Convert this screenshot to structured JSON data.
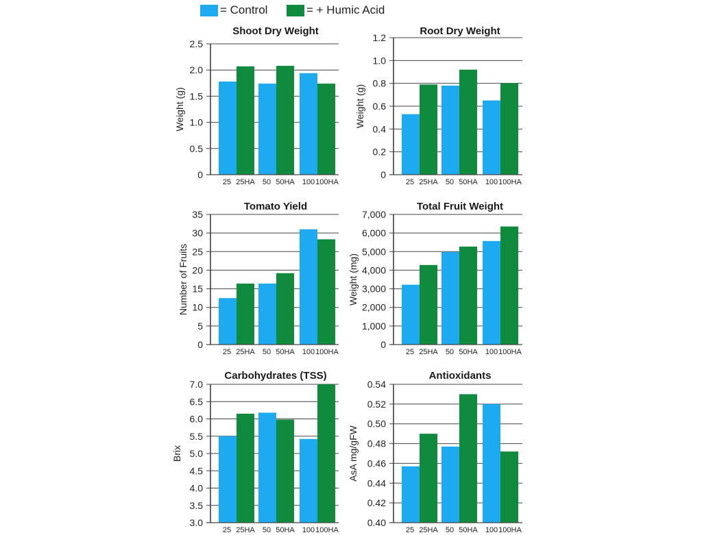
{
  "legend": [
    {
      "label": "= Control",
      "color": "#1eaaf1"
    },
    {
      "label": "= + Humic Acid",
      "color": "#108a3c"
    }
  ],
  "colors": {
    "control": "#1eaaf1",
    "humic": "#108a3c",
    "grid": "#444444"
  },
  "chart_data": [
    {
      "type": "bar",
      "title": "Shoot Dry Weight",
      "ylabel": "Weight (g)",
      "ylim": [
        0,
        2.5
      ],
      "yticks": [
        "0",
        "0.5",
        "1.0",
        "1.5",
        "2.0",
        "2.5"
      ],
      "categories": [
        "25",
        "25HA",
        "50",
        "50HA",
        "100",
        "100HA"
      ],
      "values": [
        1.78,
        2.07,
        1.74,
        2.08,
        1.94,
        1.74
      ],
      "series_colors": [
        "control",
        "humic",
        "control",
        "humic",
        "control",
        "humic"
      ]
    },
    {
      "type": "bar",
      "title": "Root Dry Weight",
      "ylabel": "Weight (g)",
      "ylim": [
        0,
        1.2
      ],
      "yticks": [
        "0",
        "0.2",
        "0.4",
        "0.6",
        "0.8",
        "1.0",
        "1.2"
      ],
      "categories": [
        "25",
        "25HA",
        "50",
        "50HA",
        "100",
        "100HA"
      ],
      "values": [
        0.53,
        0.79,
        0.78,
        0.92,
        0.65,
        0.8
      ],
      "series_colors": [
        "control",
        "humic",
        "control",
        "humic",
        "control",
        "humic"
      ]
    },
    {
      "type": "bar",
      "title": "Tomato Yield",
      "ylabel": "Number of Fruits",
      "ylim": [
        0,
        35
      ],
      "yticks": [
        "0",
        "5",
        "10",
        "15",
        "20",
        "25",
        "30",
        "35"
      ],
      "categories": [
        "25",
        "25HA",
        "50",
        "50HA",
        "100",
        "100HA"
      ],
      "values": [
        12.5,
        16.4,
        16.4,
        19.2,
        31.0,
        28.3
      ],
      "series_colors": [
        "control",
        "humic",
        "control",
        "humic",
        "control",
        "humic"
      ]
    },
    {
      "type": "bar",
      "title": "Total Fruit Weight",
      "ylabel": "Weight (mg)",
      "ylim": [
        0,
        7000
      ],
      "yticks": [
        "0",
        "1,000",
        "2,000",
        "3,000",
        "4,000",
        "5,000",
        "6,000",
        "7,000"
      ],
      "categories": [
        "25",
        "25HA",
        "50",
        "50HA",
        "100",
        "100HA"
      ],
      "values": [
        3220,
        4280,
        4980,
        5270,
        5570,
        6350
      ],
      "series_colors": [
        "control",
        "humic",
        "control",
        "humic",
        "control",
        "humic"
      ]
    },
    {
      "type": "bar",
      "title": "Carbohydrates (TSS)",
      "ylabel": "Brix",
      "ylim": [
        3.0,
        7.0
      ],
      "yticks": [
        "3.0",
        "3.5",
        "4.0",
        "4.5",
        "5.0",
        "5.5",
        "6.0",
        "6.5",
        "7.0"
      ],
      "categories": [
        "25",
        "25HA",
        "50",
        "50HA",
        "100",
        "100HA"
      ],
      "values": [
        5.5,
        6.15,
        6.18,
        5.98,
        5.42,
        7.0
      ],
      "series_colors": [
        "control",
        "humic",
        "control",
        "humic",
        "control",
        "humic"
      ]
    },
    {
      "type": "bar",
      "title": "Antioxidants",
      "ylabel": "AsA mg/gFW",
      "ylim": [
        0.4,
        0.54
      ],
      "yticks": [
        "0.40",
        "0.42",
        "0.44",
        "0.46",
        "0.48",
        "0.50",
        "0.52",
        "0.54"
      ],
      "categories": [
        "25",
        "25HA",
        "50",
        "50HA",
        "100",
        "100HA"
      ],
      "values": [
        0.457,
        0.49,
        0.477,
        0.53,
        0.52,
        0.472
      ],
      "series_colors": [
        "control",
        "humic",
        "control",
        "humic",
        "control",
        "humic"
      ]
    }
  ]
}
